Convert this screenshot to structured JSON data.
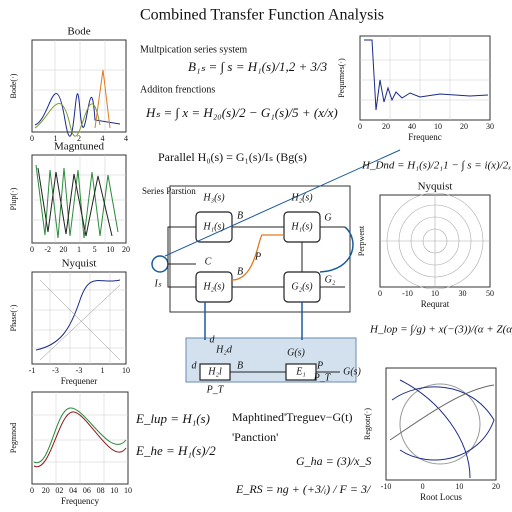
{
  "title": "Combined Transfer Function Analysis",
  "plots": {
    "bode": {
      "title": "Bode",
      "ylabel": "Bode(·)",
      "xticks": [
        "0",
        "1",
        "2",
        "4",
        "4"
      ]
    },
    "magnitude": {
      "title": "Magntuned",
      "ylabel": "Plup(·)",
      "xticks": [
        "0",
        "-2",
        "20",
        "1",
        "5",
        "10",
        "20"
      ]
    },
    "nyquist_left": {
      "title": "Nyquist",
      "ylabel": "Phase(·)",
      "xlabel": "Frequener",
      "xticks": [
        "-1",
        "-3",
        "-3",
        "1",
        "10"
      ]
    },
    "response": {
      "ylabel": "Pegmnod",
      "xlabel": "Frequency",
      "xticks": [
        "0",
        "20",
        "02",
        "04",
        "06",
        "08",
        "10",
        "10"
      ]
    },
    "spectrum": {
      "ylabel": "Pequrmes(·)",
      "xlabel": "Frequenc",
      "xticks": [
        "0",
        "20",
        "40",
        "10",
        "20",
        "30"
      ]
    },
    "nyquist_right": {
      "title": "Nyquist",
      "ylabel": "Perpwent",
      "xlabel": "Requrat",
      "xticks": [
        "0",
        "-10",
        "10",
        "30",
        "50"
      ]
    },
    "root_locus": {
      "ylabel": "Regtotr(·)",
      "xlabel": "Root Locus",
      "xticks": [
        "-10",
        "0",
        "10",
        "20"
      ]
    }
  },
  "equations": {
    "series_label": "Multpication series system",
    "series": "B₁ₛ = ∫ s = H₁(s)/1,2 + 3/3",
    "addition_label": "Additon frenctions",
    "addition": "Hₛ = ∫ x = H₂₀(s)/2 − G₁(s)/5 + (x/x)",
    "parallel": "Parallel H₀(s) = G₁(s)/Iₛ (Bg(s)",
    "dnd": "H_Dnd = H₁(s)/2₁1 − ∫ s = i(x)/2ₓ",
    "lop": "H_lop = ∫/g) + x(−(3))/(α + Z(α))",
    "elup": "E_lup = H₁(s)",
    "ehe": "E_he = H₁(s)/2",
    "mapped": "Maphtined'Treguev−G(t)",
    "panction": "'Panction'",
    "gha": "G_ha = (3)/x_S",
    "ers": "E_RS = ng + (+3/ᵢ) / F = 3/"
  },
  "diagram": {
    "series_title": "Series Parstion",
    "top_left": "H₃(s)",
    "top_right": "H₂(s)",
    "block1": "H₁(s)",
    "block2": "H₁(s)",
    "block3": "H₂(s)",
    "block4": "G₂(s)",
    "b1": "B",
    "b2": "B",
    "p": "P",
    "g": "G",
    "g2": "G₂",
    "c": "C",
    "is": "Iₛ",
    "d": "d",
    "h2d": "H₂d",
    "hsub": "H₂l",
    "b3": "B",
    "e1": "E₁",
    "gs": "G(s)",
    "p2": "P",
    "pt": "P_T",
    "pt2": "P_T",
    "out": "G(s)"
  }
}
